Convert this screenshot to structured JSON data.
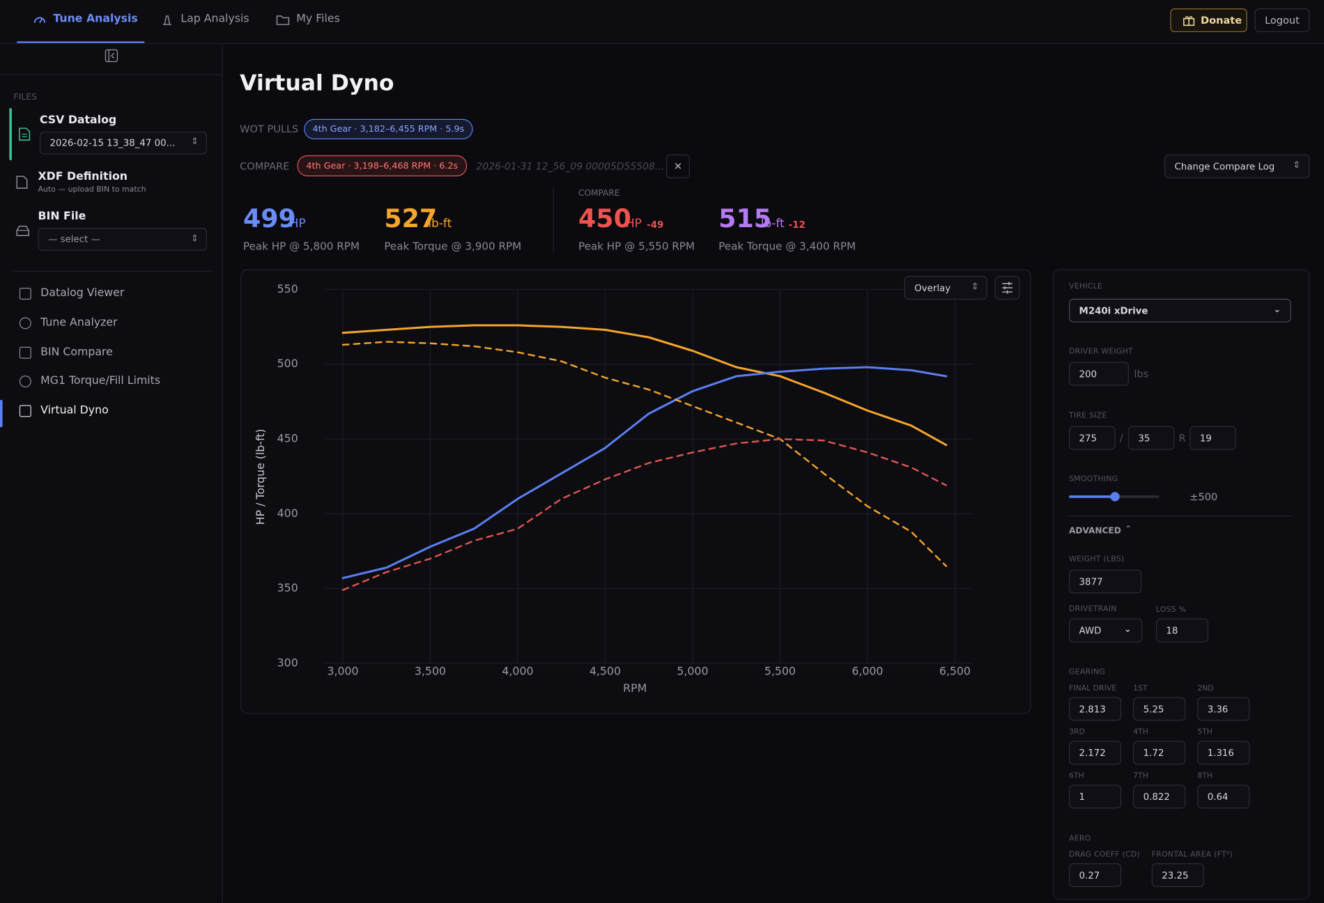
{
  "nav": {
    "tabs": [
      "Tune Analysis",
      "Lap Analysis",
      "My Files"
    ],
    "donate": "Donate",
    "logout": "Logout"
  },
  "sidebar": {
    "files_heading": "FILES",
    "csv": {
      "title": "CSV Datalog",
      "select": "2026-02-15 13_38_47 00..."
    },
    "xdf": {
      "title": "XDF Definition",
      "note": "Auto — upload BIN to match"
    },
    "bin": {
      "title": "BIN File",
      "select": "— select —"
    },
    "menu": [
      "Datalog Viewer",
      "Tune Analyzer",
      "BIN Compare",
      "MG1 Torque/Fill Limits",
      "Virtual Dyno"
    ]
  },
  "main": {
    "title": "Virtual Dyno",
    "wot_label": "WOT PULLS",
    "wot_pill": "4th Gear · 3,182–6,455 RPM · 5.9s",
    "compare_label": "COMPARE",
    "compare_pill": "4th Gear · 3,198–6,468 RPM · 6.2s",
    "compare_file": "2026-01-31 12_56_09 00005D55508...",
    "change_compare": "Change Compare Log",
    "overlay": "Overlay"
  },
  "stats": {
    "current": [
      {
        "value": 499,
        "unit": "HP",
        "caption": "Peak HP @ 5,800 RPM"
      },
      {
        "value": 527,
        "unit": "lb-ft",
        "caption": "Peak Torque @ 3,900 RPM"
      }
    ],
    "compare_heading": "COMPARE",
    "compare": [
      {
        "value": 450,
        "unit": "HP",
        "delta": -49,
        "caption": "Peak HP @ 5,550 RPM"
      },
      {
        "value": 515,
        "unit": "lb-ft",
        "delta": -12,
        "caption": "Peak Torque @ 3,400 RPM"
      }
    ]
  },
  "panel": {
    "vehicle_label": "VEHICLE",
    "vehicle": "M240i xDrive",
    "driver_weight_label": "DRIVER WEIGHT",
    "driver_weight": "200",
    "driver_weight_unit": "lbs",
    "tire_size_label": "TIRE SIZE",
    "tire": [
      "275",
      "35",
      "19"
    ],
    "tire_sep": "/",
    "tire_r": "R",
    "smoothing_label": "SMOOTHING",
    "smoothing_value": "±500",
    "advanced": "ADVANCED",
    "weight_label": "WEIGHT (LBS)",
    "weight": "3877",
    "drivetrain_label": "DRIVETRAIN",
    "drivetrain": "AWD",
    "loss_label": "LOSS %",
    "loss": "18",
    "gearing_label": "GEARING",
    "gears": [
      {
        "label": "FINAL DRIVE",
        "value": "2.813"
      },
      {
        "label": "1ST",
        "value": "5.25"
      },
      {
        "label": "2ND",
        "value": "3.36"
      },
      {
        "label": "3RD",
        "value": "2.172"
      },
      {
        "label": "4TH",
        "value": "1.72"
      },
      {
        "label": "5TH",
        "value": "1.316"
      },
      {
        "label": "6TH",
        "value": "1"
      },
      {
        "label": "7TH",
        "value": "0.822"
      },
      {
        "label": "8TH",
        "value": "0.64"
      }
    ],
    "aero_label": "AERO",
    "drag_label": "DRAG COEFF (CD)",
    "drag": "0.27",
    "frontal_label": "FRONTAL AREA (FT²)",
    "frontal": "23.25"
  },
  "chart_data": {
    "type": "line",
    "x_label": "RPM",
    "y_label": "HP / Torque (lb-ft)",
    "x": [
      3000,
      3250,
      3500,
      3750,
      4000,
      4250,
      4500,
      4750,
      5000,
      5250,
      5500,
      5750,
      6000,
      6250,
      6450
    ],
    "series": [
      {
        "color": "#f5a52b",
        "dashed": false,
        "values": [
          521,
          523,
          525,
          526,
          526,
          525,
          523,
          518,
          509,
          498,
          492,
          481,
          469,
          459,
          446
        ]
      },
      {
        "color": "#5b7ff0",
        "dashed": false,
        "values": [
          357,
          364,
          378,
          390,
          410,
          427,
          444,
          467,
          482,
          492,
          495,
          497,
          498,
          496,
          492
        ]
      },
      {
        "color": "#f5a52b",
        "dashed": true,
        "values": [
          513,
          515,
          514,
          512,
          508,
          502,
          491,
          483,
          472,
          461,
          450,
          427,
          405,
          388,
          365
        ]
      },
      {
        "color": "#e0554f",
        "dashed": true,
        "values": [
          349,
          361,
          370,
          382,
          390,
          410,
          423,
          434,
          441,
          447,
          450,
          449,
          441,
          431,
          419
        ]
      }
    ],
    "xlim": [
      2900,
      6600
    ],
    "ylim": [
      300,
      550
    ],
    "xticks": [
      {
        "value": 3000,
        "label": "3,000"
      },
      {
        "value": 3500,
        "label": "3,500"
      },
      {
        "value": 4000,
        "label": "4,000"
      },
      {
        "value": 4500,
        "label": "4,500"
      },
      {
        "value": 5000,
        "label": "5,000"
      },
      {
        "value": 5500,
        "label": "5,500"
      },
      {
        "value": 6000,
        "label": "6,000"
      },
      {
        "value": 6500,
        "label": "6,500"
      }
    ],
    "yticks": [
      300,
      350,
      400,
      450,
      500,
      550
    ],
    "grid": true
  }
}
